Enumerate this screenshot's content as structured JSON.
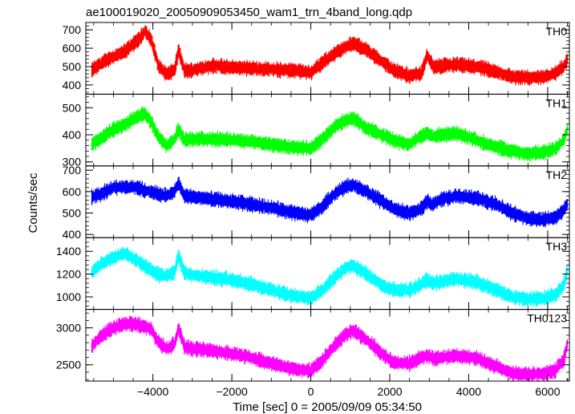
{
  "chart_data": {
    "type": "line",
    "title": "ae100019020_20050909053450_wam1_trn_4band_long.qdp",
    "xlabel": "Time [sec] 0 = 2005/09/09 05:34:50",
    "ylabel": "Counts/sec",
    "xlim": [
      -5700,
      6550
    ],
    "xticks": [
      -4000,
      -2000,
      0,
      2000,
      4000,
      6000
    ],
    "xticklabels": [
      "−4000",
      "−2000",
      "0",
      "2000",
      "4000",
      "6000"
    ],
    "x": [
      -5550,
      -5300,
      -5000,
      -4700,
      -4400,
      -4200,
      -4050,
      -3850,
      -3650,
      -3450,
      -3350,
      -3200,
      -3000,
      -2500,
      -2000,
      -1500,
      -1000,
      -500,
      0,
      300,
      600,
      900,
      1100,
      1400,
      1800,
      2100,
      2500,
      2800,
      2950,
      3100,
      3300,
      3700,
      4200,
      4700,
      5100,
      5500,
      5900,
      6200,
      6400,
      6500
    ],
    "series": [
      {
        "name": "TH0",
        "color": "#ff0000",
        "ylim": [
          350,
          740
        ],
        "yticks": [
          400,
          500,
          600,
          700
        ],
        "values": [
          480,
          520,
          555,
          585,
          640,
          690,
          650,
          500,
          460,
          480,
          590,
          480,
          480,
          505,
          495,
          490,
          485,
          480,
          470,
          520,
          570,
          610,
          625,
          590,
          530,
          480,
          450,
          465,
          560,
          500,
          505,
          510,
          500,
          470,
          445,
          440,
          445,
          465,
          500,
          540
        ]
      },
      {
        "name": "TH1",
        "color": "#00ff00",
        "ylim": [
          285,
          550
        ],
        "yticks": [
          300,
          400,
          500
        ],
        "values": [
          365,
          390,
          420,
          440,
          465,
          480,
          450,
          390,
          360,
          385,
          420,
          380,
          385,
          385,
          380,
          375,
          365,
          355,
          350,
          385,
          430,
          455,
          460,
          425,
          400,
          380,
          365,
          395,
          405,
          395,
          400,
          405,
          380,
          355,
          340,
          330,
          335,
          350,
          380,
          420
        ]
      },
      {
        "name": "TH2",
        "color": "#0000ff",
        "ylim": [
          385,
          720
        ],
        "yticks": [
          400,
          500,
          600,
          700
        ],
        "values": [
          575,
          590,
          620,
          620,
          620,
          605,
          600,
          585,
          580,
          600,
          640,
          580,
          575,
          565,
          555,
          540,
          525,
          505,
          490,
          530,
          590,
          625,
          630,
          600,
          555,
          520,
          500,
          520,
          555,
          540,
          565,
          580,
          570,
          540,
          500,
          475,
          470,
          480,
          510,
          545
        ]
      },
      {
        "name": "TH3",
        "color": "#00ffff",
        "ylim": [
          890,
          1520
        ],
        "yticks": [
          1000,
          1200,
          1400
        ],
        "values": [
          1220,
          1290,
          1350,
          1380,
          1320,
          1270,
          1240,
          1195,
          1190,
          1220,
          1360,
          1210,
          1190,
          1170,
          1150,
          1110,
          1060,
          1010,
          990,
          1060,
          1170,
          1260,
          1270,
          1200,
          1100,
          1060,
          1060,
          1110,
          1150,
          1120,
          1130,
          1160,
          1130,
          1060,
          1000,
          980,
          990,
          1020,
          1100,
          1230
        ]
      },
      {
        "name": "TH0123",
        "color": "#ff00ff",
        "ylim": [
          2280,
          3250
        ],
        "yticks": [
          2500,
          3000
        ],
        "values": [
          2750,
          2900,
          3000,
          3060,
          3050,
          3020,
          2980,
          2800,
          2720,
          2780,
          3000,
          2740,
          2720,
          2690,
          2650,
          2600,
          2520,
          2450,
          2420,
          2560,
          2760,
          2920,
          2960,
          2840,
          2650,
          2530,
          2520,
          2600,
          2620,
          2590,
          2600,
          2620,
          2590,
          2480,
          2390,
          2370,
          2380,
          2430,
          2560,
          2780
        ]
      }
    ]
  }
}
